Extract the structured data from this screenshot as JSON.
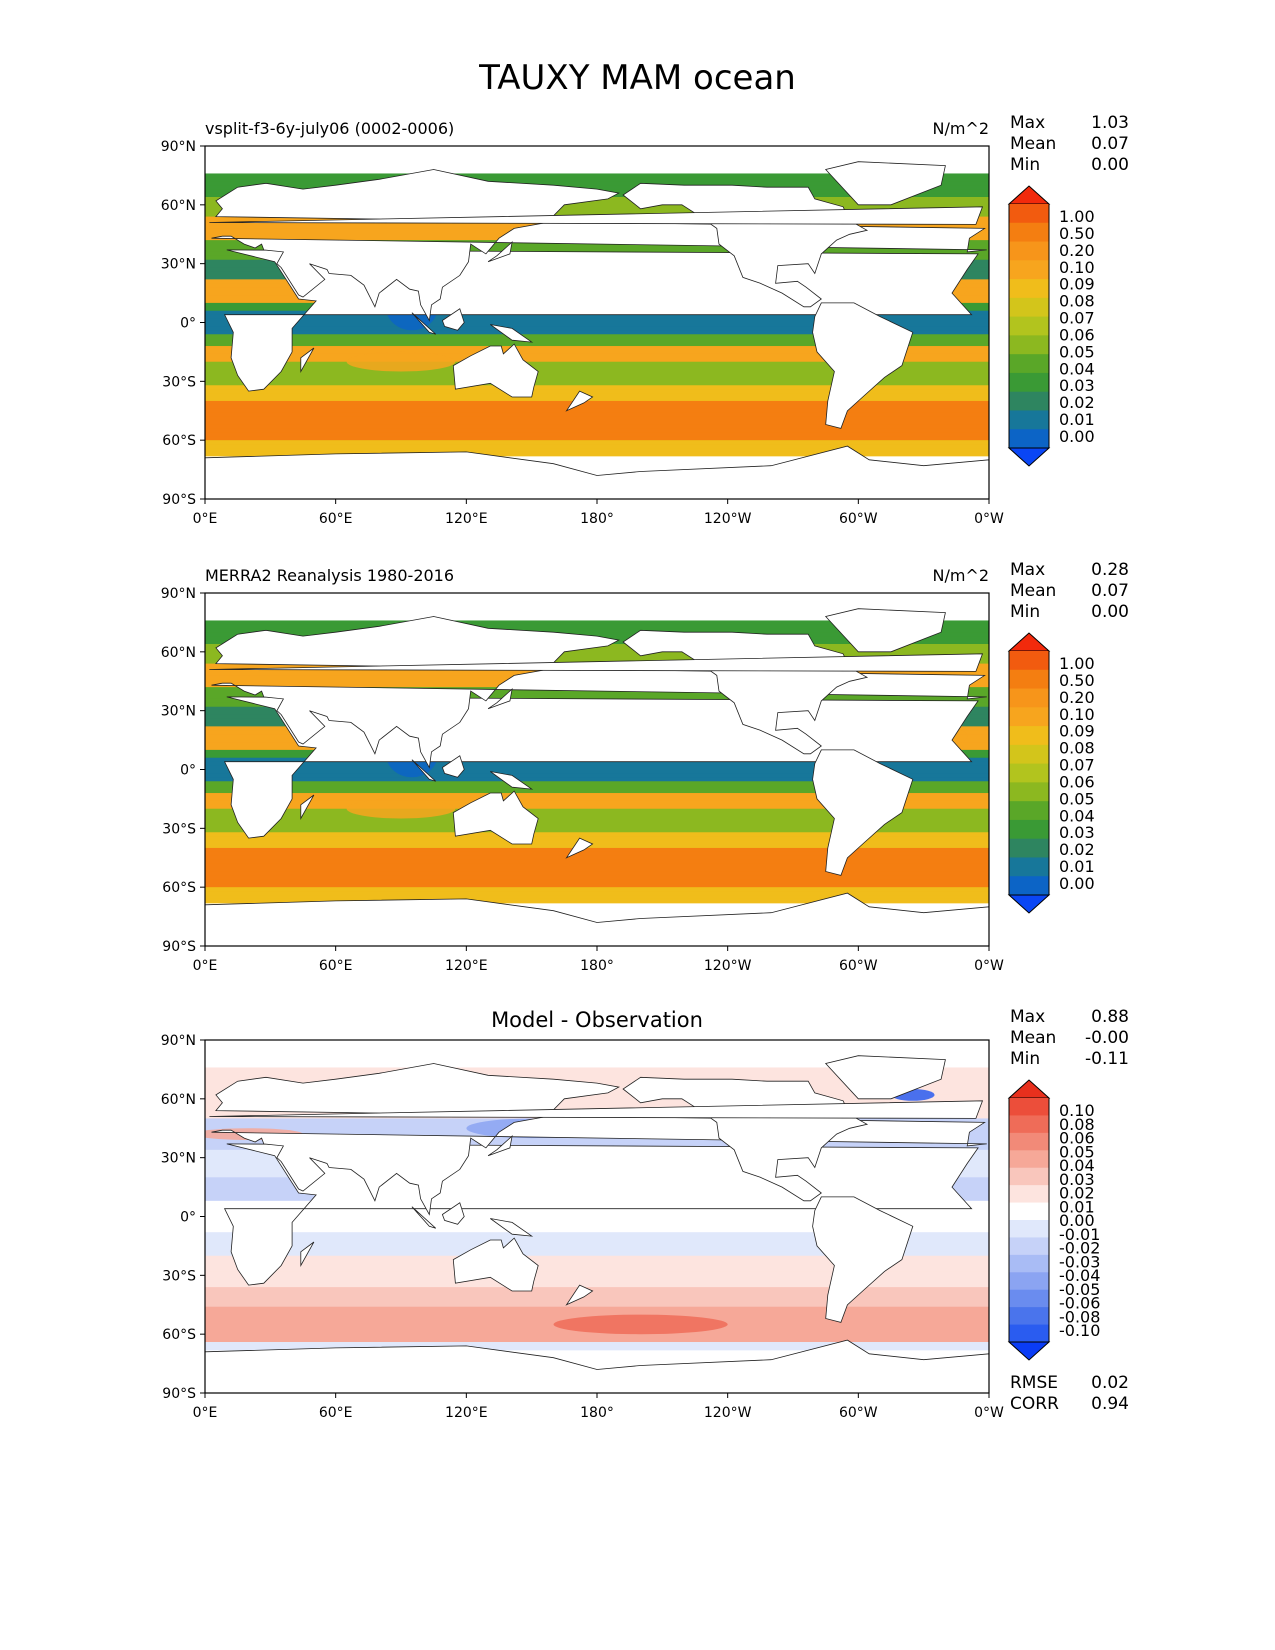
{
  "title": "TAUXY MAM ocean",
  "lon_ticks": [
    "0°E",
    "60°E",
    "120°E",
    "180°",
    "120°W",
    "60°W",
    "0°W"
  ],
  "lat_ticks": [
    "90°N",
    "60°N",
    "30°N",
    "0°",
    "30°S",
    "60°S",
    "90°S"
  ],
  "mean_colors": [
    "#0a46f5",
    "#0c64c6",
    "#17779a",
    "#2e8560",
    "#3a9a35",
    "#5aa728",
    "#8cb820",
    "#b2c41e",
    "#d3c51b",
    "#f0bd1b",
    "#f7a51e",
    "#f7951a",
    "#f47e11",
    "#f25b0f",
    "#f22a0c"
  ],
  "diff_colors": [
    "#0a3cf5",
    "#2a5cf0",
    "#4a74ec",
    "#6a8cef",
    "#8ba4f2",
    "#a9bcf5",
    "#c6d2f8",
    "#e0e8fb",
    "#ffffff",
    "#fde4df",
    "#f9c6bc",
    "#f6a898",
    "#f28a78",
    "#ef6c58",
    "#ec4e3a",
    "#e8301d"
  ],
  "chart_data": [
    {
      "type": "heatmap",
      "title": "",
      "left_label": "vsplit-f3-6y-july06 (0002-0006)",
      "units": "N/m^2",
      "stats": [
        {
          "label": "Max",
          "value": "1.03"
        },
        {
          "label": "Mean",
          "value": "0.07"
        },
        {
          "label": "Min",
          "value": "0.00"
        }
      ],
      "colorbar_labels": [
        "1.00",
        "0.50",
        "0.20",
        "0.10",
        "0.09",
        "0.08",
        "0.07",
        "0.06",
        "0.05",
        "0.04",
        "0.03",
        "0.02",
        "0.01",
        "0.00"
      ],
      "xlim": [
        0,
        360
      ],
      "ylim": [
        -90,
        90
      ],
      "metrics": []
    },
    {
      "type": "heatmap",
      "title": "",
      "left_label": "MERRA2 Reanalysis 1980-2016",
      "units": "N/m^2",
      "stats": [
        {
          "label": "Max",
          "value": "0.28"
        },
        {
          "label": "Mean",
          "value": "0.07"
        },
        {
          "label": "Min",
          "value": "0.00"
        }
      ],
      "colorbar_labels": [
        "1.00",
        "0.50",
        "0.20",
        "0.10",
        "0.09",
        "0.08",
        "0.07",
        "0.06",
        "0.05",
        "0.04",
        "0.03",
        "0.02",
        "0.01",
        "0.00"
      ],
      "xlim": [
        0,
        360
      ],
      "ylim": [
        -90,
        90
      ],
      "metrics": []
    },
    {
      "type": "heatmap",
      "title": "Model - Observation",
      "left_label": "",
      "units": "",
      "stats": [
        {
          "label": "Max",
          "value": "0.88"
        },
        {
          "label": "Mean",
          "value": "-0.00"
        },
        {
          "label": "Min",
          "value": "-0.11"
        }
      ],
      "colorbar_labels": [
        "0.10",
        "0.08",
        "0.06",
        "0.05",
        "0.04",
        "0.03",
        "0.02",
        "0.01",
        "0.00",
        "-0.01",
        "-0.02",
        "-0.03",
        "-0.04",
        "-0.05",
        "-0.06",
        "-0.08",
        "-0.10"
      ],
      "xlim": [
        0,
        360
      ],
      "ylim": [
        -90,
        90
      ],
      "metrics": [
        {
          "label": "RMSE",
          "value": "0.02"
        },
        {
          "label": "CORR",
          "value": "0.94"
        }
      ]
    }
  ]
}
